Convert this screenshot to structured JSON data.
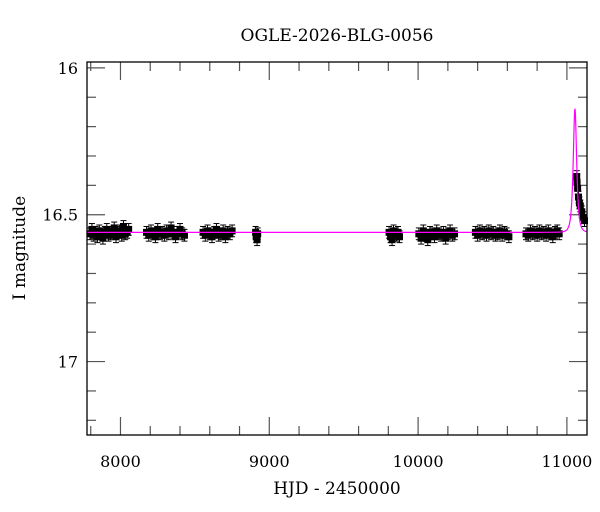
{
  "chart_data": {
    "type": "scatter",
    "title": "OGLE-2026-BLG-0056",
    "xlabel": "HJD - 2450000",
    "ylabel": "I magnitude",
    "xlim": [
      7775,
      11135
    ],
    "ylim": [
      17.25,
      15.98
    ],
    "y_inverted": true,
    "x_ticks": [
      "8000",
      "9000",
      "10000",
      "11000"
    ],
    "y_ticks": [
      "16",
      "16.5",
      "17"
    ],
    "grid": false,
    "colors": {
      "points": "#000000",
      "model": "#ff00ff"
    },
    "error": 0.02,
    "points": [
      [
        7795,
        16.565
      ],
      [
        7808,
        16.55
      ],
      [
        7820,
        16.57
      ],
      [
        7832,
        16.56
      ],
      [
        7845,
        16.575
      ],
      [
        7858,
        16.555
      ],
      [
        7870,
        16.565
      ],
      [
        7882,
        16.58
      ],
      [
        7895,
        16.56
      ],
      [
        7908,
        16.55
      ],
      [
        7920,
        16.57
      ],
      [
        7932,
        16.565
      ],
      [
        7945,
        16.56
      ],
      [
        7958,
        16.545
      ],
      [
        7970,
        16.575
      ],
      [
        7982,
        16.56
      ],
      [
        7995,
        16.555
      ],
      [
        8008,
        16.57
      ],
      [
        8020,
        16.54
      ],
      [
        8032,
        16.565
      ],
      [
        8045,
        16.56
      ],
      [
        8055,
        16.55
      ],
      [
        8175,
        16.56
      ],
      [
        8190,
        16.57
      ],
      [
        8205,
        16.555
      ],
      [
        8220,
        16.565
      ],
      [
        8235,
        16.575
      ],
      [
        8250,
        16.55
      ],
      [
        8265,
        16.565
      ],
      [
        8280,
        16.56
      ],
      [
        8295,
        16.57
      ],
      [
        8310,
        16.555
      ],
      [
        8325,
        16.565
      ],
      [
        8340,
        16.545
      ],
      [
        8355,
        16.56
      ],
      [
        8370,
        16.575
      ],
      [
        8385,
        16.56
      ],
      [
        8400,
        16.55
      ],
      [
        8415,
        16.565
      ],
      [
        8430,
        16.57
      ],
      [
        8555,
        16.56
      ],
      [
        8570,
        16.57
      ],
      [
        8585,
        16.555
      ],
      [
        8600,
        16.565
      ],
      [
        8615,
        16.575
      ],
      [
        8630,
        16.56
      ],
      [
        8645,
        16.55
      ],
      [
        8660,
        16.57
      ],
      [
        8675,
        16.565
      ],
      [
        8690,
        16.555
      ],
      [
        8705,
        16.575
      ],
      [
        8720,
        16.56
      ],
      [
        8735,
        16.565
      ],
      [
        8750,
        16.555
      ],
      [
        8908,
        16.56
      ],
      [
        8912,
        16.575
      ],
      [
        8918,
        16.585
      ],
      [
        8922,
        16.565
      ],
      [
        9805,
        16.56
      ],
      [
        9815,
        16.575
      ],
      [
        9825,
        16.585
      ],
      [
        9835,
        16.555
      ],
      [
        9845,
        16.565
      ],
      [
        9855,
        16.57
      ],
      [
        9865,
        16.56
      ],
      [
        9875,
        16.575
      ],
      [
        10005,
        16.565
      ],
      [
        10020,
        16.58
      ],
      [
        10035,
        16.555
      ],
      [
        10050,
        16.57
      ],
      [
        10065,
        16.585
      ],
      [
        10080,
        16.56
      ],
      [
        10095,
        16.565
      ],
      [
        10110,
        16.575
      ],
      [
        10125,
        16.555
      ],
      [
        10140,
        16.565
      ],
      [
        10155,
        16.57
      ],
      [
        10170,
        16.56
      ],
      [
        10185,
        16.58
      ],
      [
        10200,
        16.565
      ],
      [
        10215,
        16.555
      ],
      [
        10230,
        16.57
      ],
      [
        10245,
        16.565
      ],
      [
        10385,
        16.56
      ],
      [
        10400,
        16.57
      ],
      [
        10415,
        16.555
      ],
      [
        10430,
        16.565
      ],
      [
        10445,
        16.56
      ],
      [
        10460,
        16.57
      ],
      [
        10475,
        16.555
      ],
      [
        10490,
        16.565
      ],
      [
        10505,
        16.56
      ],
      [
        10520,
        16.57
      ],
      [
        10535,
        16.565
      ],
      [
        10550,
        16.555
      ],
      [
        10565,
        16.57
      ],
      [
        10580,
        16.56
      ],
      [
        10595,
        16.565
      ],
      [
        10610,
        16.575
      ],
      [
        10725,
        16.565
      ],
      [
        10740,
        16.57
      ],
      [
        10755,
        16.555
      ],
      [
        10770,
        16.565
      ],
      [
        10785,
        16.56
      ],
      [
        10800,
        16.57
      ],
      [
        10815,
        16.555
      ],
      [
        10830,
        16.565
      ],
      [
        10845,
        16.56
      ],
      [
        10860,
        16.57
      ],
      [
        10875,
        16.555
      ],
      [
        10890,
        16.565
      ],
      [
        10905,
        16.575
      ],
      [
        10920,
        16.56
      ],
      [
        10935,
        16.555
      ],
      [
        10948,
        16.565
      ],
      [
        11066,
        16.37
      ],
      [
        11068,
        16.39
      ],
      [
        11072,
        16.41
      ],
      [
        11078,
        16.44
      ],
      [
        11084,
        16.46
      ],
      [
        11090,
        16.47
      ],
      [
        11100,
        16.49
      ],
      [
        11110,
        16.51
      ],
      [
        11118,
        16.52
      ]
    ],
    "model": {
      "type": "PSPL",
      "t0": 11054,
      "tE": 15,
      "u0": 0.85,
      "baseline": 16.56
    }
  }
}
